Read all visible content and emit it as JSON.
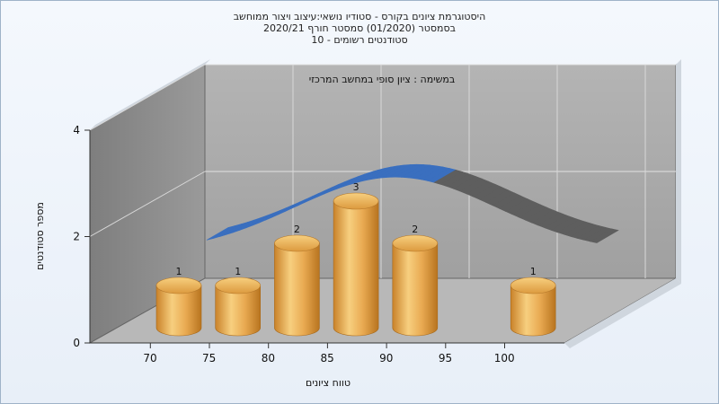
{
  "chart_data": {
    "type": "bar",
    "title_lines": [
      "היסטוגרמת ציונים בקורס - סטודיו נושאי:עיצוב ויצור ממוחשב",
      "בסמסטר  (01/2020)  סמסטר חורף  2020/21",
      "סטודנטים רשומים - 10"
    ],
    "annotation": "במשימה : ציון סופי במחשב המרכזי",
    "xlabel": "טווח ציונים",
    "ylabel": "מספר סטודנטים",
    "x_ticks": [
      "70",
      "75",
      "80",
      "85",
      "90",
      "95",
      "100"
    ],
    "categories": [
      "70",
      "75",
      "80",
      "85",
      "90",
      "95",
      "100"
    ],
    "values": [
      1,
      1,
      2,
      3,
      2,
      0,
      1
    ],
    "y_ticks": [
      "0",
      "2",
      "4"
    ],
    "ylim": [
      0,
      4
    ],
    "grid": true,
    "bar_shape": "cylinder",
    "trend_curve": "normal-distribution ribbon",
    "colors": {
      "bar": "#e8a84a",
      "bar_top": "#f3c064",
      "ribbon": "#3a6fbf",
      "ribbon_shadow": "#5e5e5e",
      "wall": "#a4a4a4",
      "side_wall": "#8a8a8a",
      "floor": "#b8b8b8"
    }
  }
}
